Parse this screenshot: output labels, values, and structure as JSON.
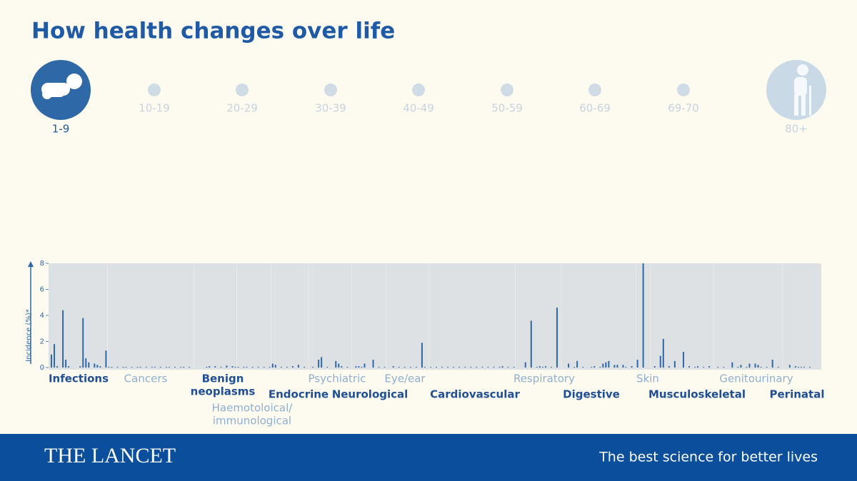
{
  "chart_data": {
    "type": "bar",
    "title": "How health changes over life",
    "age_groups": [
      "1-9",
      "10-19",
      "20-29",
      "30-39",
      "40-49",
      "50-59",
      "60-69",
      "69-70",
      "80+"
    ],
    "selected_index": 0,
    "ylabel": "Incidence (%)*",
    "ylim": [
      0,
      8
    ],
    "yticks": [
      0,
      2,
      4,
      6,
      8
    ],
    "color": "#2e68a6",
    "groups": [
      {
        "name": [
          "Infections"
        ],
        "values": [
          1.0,
          1.8,
          0.1,
          0,
          4.4,
          0.6,
          0.1,
          0,
          0,
          0,
          0.1,
          3.8,
          0.7,
          0.4,
          0,
          0.3,
          0.2,
          0.1,
          0,
          1.3
        ]
      },
      {
        "name": [
          "Cancers"
        ],
        "values": [
          0.05,
          0.05,
          0,
          0.05,
          0,
          0.05,
          0.05,
          0,
          0.05,
          0,
          0.05,
          0.05,
          0,
          0.05,
          0,
          0.05,
          0.05,
          0,
          0.05,
          0,
          0.05,
          0.05,
          0,
          0.05,
          0,
          0.05,
          0.05,
          0,
          0.05,
          0
        ]
      },
      {
        "name": [
          "Benign",
          "neoplasms"
        ],
        "values": [
          0,
          0,
          0,
          0,
          0.05,
          0.1,
          0,
          0.1,
          0,
          0.05,
          0,
          0.15,
          0,
          0.1,
          0.05
        ]
      },
      {
        "name": [
          "Haemotoloical/",
          "immunological"
        ],
        "values": [
          0.05,
          0,
          0.05,
          0.05,
          0,
          0.05,
          0,
          0.05,
          0,
          0.05,
          0,
          0.05
        ]
      },
      {
        "name": [
          "Endocrine"
        ],
        "values": [
          0.3,
          0.2,
          0,
          0.05,
          0,
          0.05,
          0,
          0.1,
          0,
          0.2,
          0,
          0.05,
          0
        ]
      },
      {
        "name": [
          "Psychiatric"
        ],
        "values": [
          0,
          0.05,
          0,
          0.6,
          0.8,
          0,
          0.05,
          0,
          0,
          0.5,
          0.3,
          0.1,
          0,
          0.05,
          0
        ]
      },
      {
        "name": [
          "Neurological"
        ],
        "values": [
          0,
          0.1,
          0.1,
          0.05,
          0.3,
          0,
          0,
          0.6,
          0,
          0.05,
          0,
          0.05
        ]
      },
      {
        "name": [
          "Eye/ear"
        ],
        "values": [
          0,
          0,
          0.1,
          0,
          0.05,
          0,
          0.05,
          0,
          0.05,
          0,
          0.05,
          0,
          1.9,
          0.05,
          0
        ]
      },
      {
        "name": [
          "Cardiovascular"
        ],
        "values": [
          0.05,
          0,
          0.05,
          0,
          0.05,
          0,
          0.05,
          0,
          0.05,
          0,
          0.05,
          0,
          0.05,
          0,
          0.05,
          0,
          0.05,
          0,
          0.05,
          0,
          0.05,
          0,
          0.05,
          0,
          0.05,
          0.1,
          0,
          0.05,
          0,
          0.05
        ]
      },
      {
        "name": [
          "Respiratory"
        ],
        "values": [
          0,
          0,
          0,
          0.4,
          0,
          3.6,
          0,
          0.05,
          0.1,
          0.05,
          0.1,
          0,
          0.05,
          0,
          4.6,
          0
        ]
      },
      {
        "name": [
          "Digestive"
        ],
        "values": [
          0,
          0,
          0.3,
          0,
          0.05,
          0.5,
          0,
          0.05,
          0,
          0,
          0.05,
          0.1,
          0,
          0.05,
          0.3,
          0.4,
          0.5,
          0,
          0.2,
          0.2,
          0,
          0.2,
          0.05,
          0,
          0.1,
          0
        ]
      },
      {
        "name": [
          "Skin"
        ],
        "values": [
          0.6,
          0,
          8,
          0,
          0
        ]
      },
      {
        "name": [
          "Musculoskeletal"
        ],
        "values": [
          0,
          0.1,
          0,
          0.9,
          2.2,
          0,
          0.1,
          0,
          0.5,
          0,
          0,
          1.2,
          0,
          0.1,
          0,
          0.05,
          0.1,
          0,
          0.05,
          0,
          0.1,
          0
        ]
      },
      {
        "name": [
          "Genitourinary"
        ],
        "values": [
          0,
          0.05,
          0,
          0.05,
          0,
          0,
          0.4,
          0,
          0.05,
          0.2,
          0,
          0.05,
          0.3,
          0,
          0.3,
          0.2,
          0.05,
          0,
          0.05,
          0,
          0.6,
          0,
          0.05,
          0
        ]
      },
      {
        "name": [
          "Perinatal"
        ],
        "values": [
          0,
          0,
          0.2,
          0,
          0.1,
          0.05,
          0.05,
          0.05,
          0,
          0.05,
          0
        ]
      }
    ]
  },
  "footer": {
    "brand": "THE LANCET",
    "tagline": "The best science for better lives"
  }
}
